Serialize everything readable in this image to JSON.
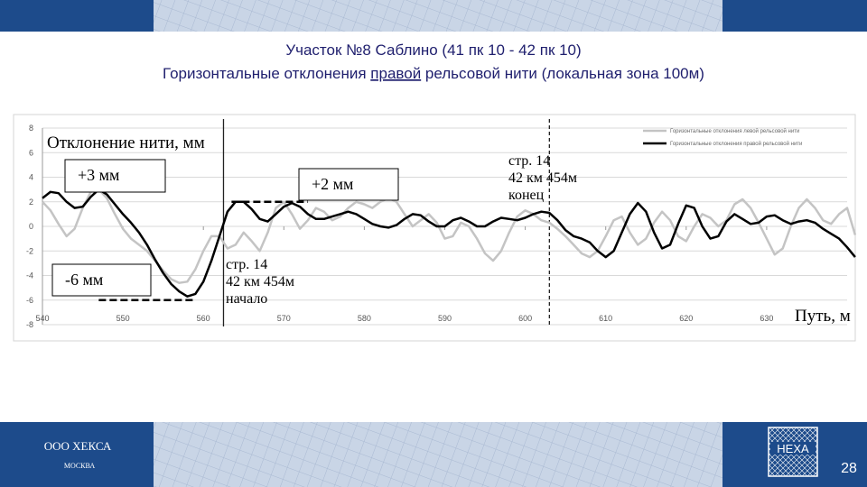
{
  "slide": {
    "title_line1": "Участок №8 Саблино (41 пк 10 - 42 пк 10)",
    "title_line2": [
      "Горизонтальные отклонения",
      "правой",
      "рельсовой нити (локальная  зона 100м)"
    ],
    "company": "ООО ХЕКСА",
    "city": "МОСКВА",
    "logo": "HEXA",
    "page_number": "28"
  },
  "chart_data": {
    "type": "line",
    "y_label": "Отклонение нити, мм",
    "x_label": "Путь, м",
    "xlim": [
      540,
      640
    ],
    "ylim": [
      -8,
      8
    ],
    "xticks": [
      540,
      550,
      560,
      570,
      580,
      590,
      600,
      610,
      620,
      630
    ],
    "yticks": [
      8,
      6,
      4,
      2,
      0,
      -2,
      -4,
      -6,
      -8
    ],
    "grid": true,
    "legend": "top-right",
    "x": [
      540,
      541,
      542,
      543,
      544,
      545,
      546,
      547,
      548,
      549,
      550,
      551,
      552,
      553,
      554,
      555,
      556,
      557,
      558,
      559,
      560,
      561,
      562,
      563,
      564,
      565,
      566,
      567,
      568,
      569,
      570,
      571,
      572,
      573,
      574,
      575,
      576,
      577,
      578,
      579,
      580,
      581,
      582,
      583,
      584,
      585,
      586,
      587,
      588,
      589,
      590,
      591,
      592,
      593,
      594,
      595,
      596,
      597,
      598,
      599,
      600,
      601,
      602,
      603,
      604,
      605,
      606,
      607,
      608,
      609,
      610,
      611,
      612,
      613,
      614,
      615,
      616,
      617,
      618,
      619,
      620,
      621,
      622,
      623,
      624,
      625,
      626,
      627,
      628,
      629,
      630,
      631,
      632,
      633,
      634,
      635,
      636,
      637,
      638,
      639,
      640,
      641
    ],
    "series": [
      {
        "name": "Горизонтальные отклонения левой рельсовой нити",
        "color": "#c4c4c4",
        "width": 2.5,
        "values": [
          2.0,
          1.3,
          0.2,
          -0.8,
          -0.2,
          1.5,
          2.8,
          3.0,
          2.3,
          1.0,
          -0.2,
          -1.0,
          -1.5,
          -2.0,
          -2.8,
          -3.6,
          -4.3,
          -4.6,
          -4.5,
          -3.5,
          -2.0,
          -0.8,
          -0.8,
          -1.8,
          -1.5,
          -0.5,
          -1.2,
          -2.0,
          -0.5,
          1.5,
          2.0,
          1.0,
          -0.2,
          0.5,
          1.5,
          1.2,
          0.5,
          0.8,
          1.5,
          2.0,
          1.8,
          1.5,
          2.0,
          2.3,
          2.0,
          1.0,
          0.0,
          0.5,
          1.0,
          0.3,
          -1.0,
          -0.8,
          0.3,
          0.0,
          -1.0,
          -2.2,
          -2.8,
          -2.0,
          -0.5,
          0.8,
          1.3,
          1.0,
          0.5,
          0.3,
          -0.2,
          -0.8,
          -1.5,
          -2.2,
          -2.5,
          -2.0,
          -0.8,
          0.5,
          0.8,
          -0.5,
          -1.5,
          -1.0,
          0.3,
          1.2,
          0.5,
          -0.8,
          -1.2,
          0.0,
          1.0,
          0.7,
          0.0,
          0.5,
          1.8,
          2.2,
          1.5,
          0.3,
          -1.0,
          -2.3,
          -1.8,
          0.0,
          1.5,
          2.2,
          1.5,
          0.5,
          0.2,
          1.0,
          1.5,
          -0.7
        ]
      },
      {
        "name": "Горизонтальные отклонения правой рельсовой нити",
        "color": "#000000",
        "width": 2.5,
        "values": [
          2.3,
          2.8,
          2.7,
          2.0,
          1.5,
          1.6,
          2.4,
          3.0,
          2.6,
          1.8,
          1.0,
          0.3,
          -0.5,
          -1.5,
          -2.7,
          -3.8,
          -4.7,
          -5.3,
          -5.7,
          -5.5,
          -4.5,
          -2.8,
          -0.8,
          1.2,
          2.0,
          2.0,
          1.4,
          0.6,
          0.4,
          1.0,
          1.6,
          1.9,
          1.6,
          1.0,
          0.6,
          0.6,
          0.8,
          1.0,
          1.2,
          1.0,
          0.6,
          0.2,
          0.0,
          -0.1,
          0.1,
          0.6,
          1.0,
          0.9,
          0.4,
          0.0,
          0.0,
          0.5,
          0.7,
          0.4,
          0.0,
          0.0,
          0.4,
          0.7,
          0.6,
          0.5,
          0.7,
          1.0,
          1.2,
          1.1,
          0.5,
          -0.3,
          -0.8,
          -1.0,
          -1.3,
          -2.0,
          -2.5,
          -2.0,
          -0.5,
          1.0,
          1.9,
          1.2,
          -0.5,
          -1.8,
          -1.5,
          0.2,
          1.7,
          1.5,
          0.0,
          -1.0,
          -0.8,
          0.4,
          1.0,
          0.6,
          0.2,
          0.3,
          0.8,
          0.9,
          0.5,
          0.2,
          0.4,
          0.5,
          0.3,
          -0.2,
          -0.6,
          -1.0,
          -1.7,
          -2.5
        ]
      }
    ],
    "vlines": [
      {
        "x": 562.5,
        "style": "solid"
      },
      {
        "x": 603,
        "style": "dashed"
      }
    ],
    "hlines": [
      {
        "y": 3,
        "x": [
          547,
          555
        ]
      },
      {
        "y": -6,
        "x": [
          547,
          559
        ]
      },
      {
        "y": 2,
        "x": [
          563.5,
          573
        ]
      }
    ],
    "annotations": [
      {
        "text": [
          "+3 мм"
        ],
        "boxed": true
      },
      {
        "text": [
          "-6 мм"
        ],
        "boxed": true
      },
      {
        "text": [
          "+2 мм"
        ],
        "boxed": true
      },
      {
        "text": [
          "стр. 14",
          "42 км 454м",
          "начало"
        ],
        "boxed": false
      },
      {
        "text": [
          "стр. 14",
          "42 км 454м",
          "конец"
        ],
        "boxed": false
      }
    ]
  }
}
